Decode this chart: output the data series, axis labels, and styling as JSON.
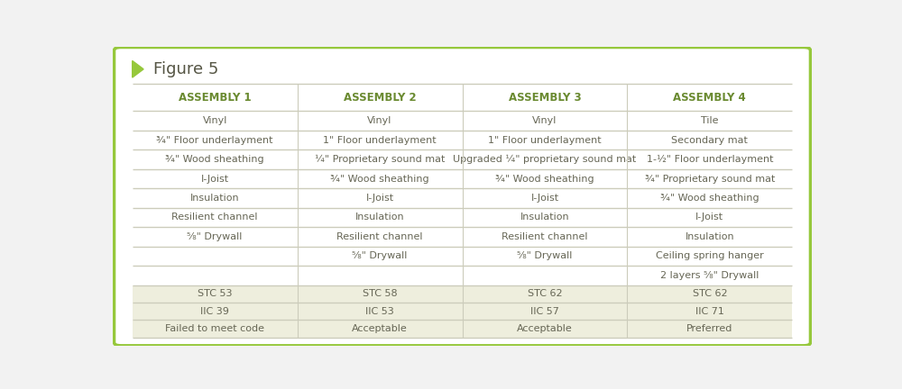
{
  "title": "Figure 5",
  "columns": [
    "ASSEMBLY 1",
    "ASSEMBLY 2",
    "ASSEMBLY 3",
    "ASSEMBLY 4"
  ],
  "all_rows": [
    [
      "Vinyl",
      "Vinyl",
      "Vinyl",
      "Tile"
    ],
    [
      "¾\" Floor underlayment",
      "1\" Floor underlayment",
      "1\" Floor underlayment",
      "Secondary mat"
    ],
    [
      "¾\" Wood sheathing",
      "¼\" Proprietary sound mat",
      "Upgraded ¼\" proprietary sound mat",
      "1-½\" Floor underlayment"
    ],
    [
      "I-Joist",
      "¾\" Wood sheathing",
      "¾\" Wood sheathing",
      "¾\" Proprietary sound mat"
    ],
    [
      "Insulation",
      "I-Joist",
      "I-Joist",
      "¾\" Wood sheathing"
    ],
    [
      "Resilient channel",
      "Insulation",
      "Insulation",
      "I-Joist"
    ],
    [
      "⁵⁄₈\" Drywall",
      "Resilient channel",
      "Resilient channel",
      "Insulation"
    ],
    [
      "",
      "⁵⁄₈\" Drywall",
      "⁵⁄₈\" Drywall",
      "Ceiling spring hanger"
    ],
    [
      "",
      "",
      "",
      "2 layers ⁵⁄₈\" Drywall"
    ]
  ],
  "highlight_rows": [
    [
      "STC 53",
      "STC 58",
      "STC 62",
      "STC 62"
    ],
    [
      "IIC 39",
      "IIC 53",
      "IIC 57",
      "IIC 71"
    ],
    [
      "Failed to meet code",
      "Acceptable",
      "Acceptable",
      "Preferred"
    ]
  ],
  "highlight_bg": "#eeeedd",
  "header_text_color": "#6a8a30",
  "body_text_color": "#666655",
  "line_color": "#ccccbb",
  "border_color": "#96c83c",
  "bg_color": "#ffffff",
  "outer_bg": "#f2f2f2",
  "title_color": "#555544",
  "arrow_color": "#96c83c",
  "title_fontsize": 13,
  "header_fontsize": 8.5,
  "body_fontsize": 8.0
}
